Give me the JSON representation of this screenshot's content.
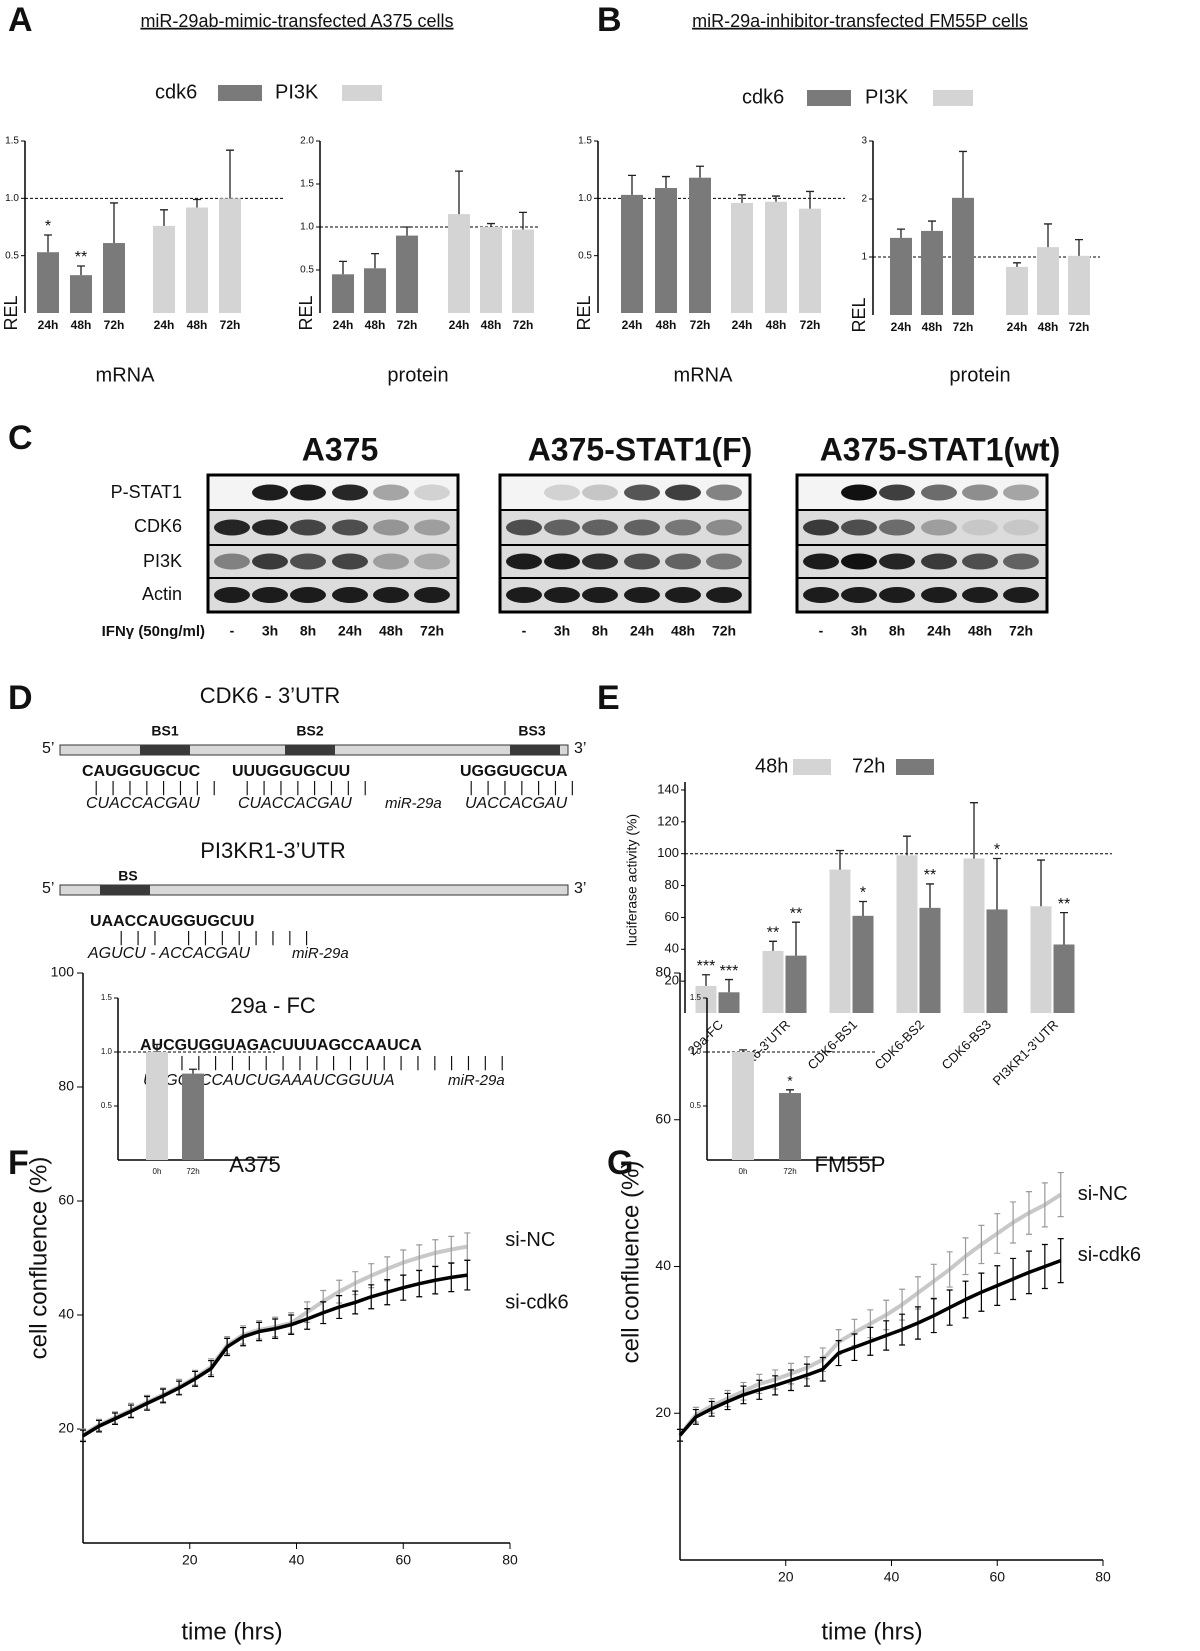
{
  "chart_data": [
    {
      "panel": "A",
      "type": "bar",
      "title": "miR-29ab-mimic-transfected A375 cells",
      "xlabel": "mRNA",
      "ylabel": "REL",
      "categories": [
        "24h",
        "48h",
        "72h"
      ],
      "series": [
        {
          "name": "cdk6",
          "color": "#7a7a7a",
          "values": [
            0.53,
            0.33,
            0.61
          ],
          "errors": [
            0.15,
            0.08,
            0.35
          ],
          "significance": [
            "*",
            "**",
            null
          ]
        },
        {
          "name": "PI3K",
          "color": "#d4d4d4",
          "values": [
            0.76,
            0.92,
            1.0
          ],
          "errors": [
            0.14,
            0.07,
            0.42
          ]
        }
      ],
      "ylim": [
        0,
        1.5
      ],
      "yticks": [
        0.5,
        {
          "value": 1,
          "label": "1.0"
        },
        1.5
      ],
      "reference_line": 1
    },
    {
      "type": "bar",
      "xlabel": "protein",
      "ylabel": "REL",
      "categories": [
        "24h",
        "48h",
        "72h"
      ],
      "series": [
        {
          "color": "#7a7a7a",
          "values": [
            0.45,
            0.52,
            0.9
          ],
          "errors": [
            0.15,
            0.17,
            0.1
          ]
        },
        {
          "color": "#d4d4d4",
          "values": [
            1.15,
            1.0,
            0.97
          ],
          "errors": [
            0.5,
            0.04,
            0.2
          ]
        }
      ],
      "ylim": [
        0,
        2
      ],
      "yticks": [
        0.5,
        {
          "value": 1,
          "label": "1.0"
        },
        1.5,
        {
          "value": 2,
          "label": "2.0"
        }
      ],
      "reference_line": 1
    },
    {
      "panel": "B",
      "type": "bar",
      "title": "miR-29a-inhibitor-transfected FM55P cells",
      "xlabel": "mRNA",
      "ylabel": "REL",
      "categories": [
        "24h",
        "48h",
        "72h"
      ],
      "series": [
        {
          "name": "cdk6",
          "color": "#7a7a7a",
          "values": [
            1.03,
            1.09,
            1.18
          ],
          "errors": [
            0.17,
            0.1,
            0.1
          ]
        },
        {
          "name": "PI3K",
          "color": "#d4d4d4",
          "values": [
            0.96,
            0.97,
            0.91
          ],
          "errors": [
            0.07,
            0.05,
            0.15
          ]
        }
      ],
      "ylim": [
        0,
        1.5
      ],
      "yticks": [
        0.5,
        {
          "value": 1,
          "label": "1.0"
        },
        1.5
      ],
      "reference_line": 1
    },
    {
      "type": "bar",
      "xlabel": "protein",
      "ylabel": "REL",
      "categories": [
        "24h",
        "48h",
        "72h"
      ],
      "series": [
        {
          "color": "#7a7a7a",
          "values": [
            1.33,
            1.45,
            2.02
          ],
          "errors": [
            0.15,
            0.17,
            0.8
          ]
        },
        {
          "color": "#d4d4d4",
          "values": [
            0.83,
            1.17,
            1.02
          ],
          "errors": [
            0.07,
            0.4,
            0.28
          ]
        }
      ],
      "ylim": [
        0,
        3
      ],
      "yticks": [
        1,
        2,
        3
      ],
      "reference_line": 1
    },
    {
      "panel": "E",
      "type": "bar",
      "ylabel": "luciferase activity (%)",
      "categories": [
        "29a-FC",
        "CDK6-3’UTR",
        "CDK6-BS1",
        "CDK6-BS2",
        "CDK6-BS3",
        "PI3KR1-3’UTR"
      ],
      "series": [
        {
          "name": "48h",
          "color": "#d4d4d4",
          "values": [
            17,
            39,
            90,
            99,
            97,
            67
          ],
          "errors": [
            7,
            6,
            12,
            12,
            35,
            29
          ],
          "significance": [
            "***",
            "**",
            null,
            null,
            null,
            null
          ]
        },
        {
          "name": "72h",
          "color": "#7a7a7a",
          "values": [
            13,
            36,
            61,
            66,
            65,
            43
          ],
          "errors": [
            8,
            21,
            9,
            15,
            32,
            20
          ],
          "significance": [
            "***",
            "**",
            "*",
            "**",
            "*",
            "**"
          ]
        }
      ],
      "ylim": [
        0,
        145
      ],
      "yticks": [
        20,
        40,
        60,
        80,
        100,
        120,
        140
      ],
      "reference_line": 100
    },
    {
      "panel": "F",
      "type": "line",
      "title": "A375",
      "xlabel": "time (hrs)",
      "ylabel": "cell confluence (%)",
      "x": [
        0,
        3,
        6,
        9,
        12,
        15,
        18,
        21,
        24,
        27,
        30,
        33,
        36,
        39,
        42,
        45,
        48,
        51,
        54,
        57,
        60,
        63,
        66,
        69,
        72
      ],
      "series": [
        {
          "name": "si-NC",
          "color": "#c8c8c8",
          "values": [
            19,
            20.7,
            22,
            23.3,
            24.7,
            26,
            27.4,
            29,
            30.9,
            34.7,
            36.5,
            37.4,
            37.9,
            38.6,
            40.5,
            42.4,
            44.1,
            45.6,
            46.9,
            48.1,
            49.2,
            50.1,
            50.9,
            51.5,
            52
          ],
          "errors": [
            1,
            1,
            1,
            1.2,
            1.2,
            1.2,
            1.3,
            1.3,
            1.4,
            1.5,
            1.6,
            1.6,
            1.7,
            1.8,
            1.8,
            1.9,
            2,
            2,
            2.1,
            2.1,
            2.2,
            2.2,
            2.3,
            2.3,
            2.4
          ]
        },
        {
          "name": "si-cdk6",
          "color": "#000000",
          "values": [
            18.8,
            20.5,
            21.8,
            23.1,
            24.5,
            25.8,
            27.2,
            28.8,
            30.6,
            34.4,
            36.2,
            37.1,
            37.6,
            38.3,
            39.3,
            40.4,
            41.4,
            42.2,
            43.2,
            44,
            44.8,
            45.5,
            46.1,
            46.6,
            47
          ],
          "errors": [
            1,
            1,
            1,
            1.1,
            1.2,
            1.2,
            1.2,
            1.3,
            1.4,
            1.5,
            1.6,
            1.6,
            1.7,
            1.7,
            1.8,
            1.9,
            2,
            2,
            2.1,
            2.2,
            2.2,
            2.3,
            2.4,
            2.5,
            2.6
          ]
        }
      ],
      "xlim": [
        0,
        80
      ],
      "ylim": [
        0,
        100
      ],
      "xticks": [
        20,
        40,
        60,
        80
      ],
      "yticks": [
        20,
        40,
        60,
        80,
        100
      ]
    },
    {
      "type": "bar",
      "categories": [
        "0h",
        "72h"
      ],
      "values": [
        1.0,
        0.8
      ],
      "errors": [
        0.07,
        0.04
      ],
      "colors": [
        "#d4d4d4",
        "#7a7a7a"
      ],
      "ylim": [
        0,
        1.5
      ],
      "yticks": [
        0.5,
        {
          "value": 1,
          "label": "1.0"
        },
        1.5
      ],
      "reference_line": 1
    },
    {
      "panel": "G",
      "type": "line",
      "title": "FM55P",
      "xlabel": "time (hrs)",
      "ylabel": "cell confluence (%)",
      "x": [
        0,
        3,
        6,
        9,
        12,
        15,
        18,
        21,
        24,
        27,
        30,
        33,
        36,
        39,
        42,
        45,
        48,
        51,
        54,
        57,
        60,
        63,
        66,
        69,
        72
      ],
      "series": [
        {
          "name": "si-NC",
          "color": "#c8c8c8",
          "values": [
            17,
            19.8,
            21,
            22,
            23,
            24,
            24.6,
            25.4,
            26.2,
            27.3,
            29.7,
            31,
            32.2,
            33.4,
            34.8,
            36.4,
            38,
            39.6,
            41.4,
            43,
            44.5,
            46,
            47.3,
            48.4,
            49.8
          ],
          "errors": [
            0.8,
            1,
            1,
            1.1,
            1.2,
            1.3,
            1.3,
            1.4,
            1.5,
            1.6,
            1.7,
            1.8,
            1.9,
            2,
            2.1,
            2.2,
            2.3,
            2.4,
            2.5,
            2.6,
            2.7,
            2.8,
            2.9,
            3,
            3
          ]
        },
        {
          "name": "si-cdk6",
          "color": "#000000",
          "values": [
            17,
            19.5,
            20.6,
            21.6,
            22.5,
            23.2,
            23.8,
            24.5,
            25.2,
            26,
            28.2,
            29,
            29.8,
            30.6,
            31.4,
            32.3,
            33.3,
            34.4,
            35.5,
            36.5,
            37.4,
            38.3,
            39.2,
            40,
            40.8
          ],
          "errors": [
            0.8,
            1,
            1,
            1.1,
            1.2,
            1.3,
            1.3,
            1.4,
            1.5,
            1.6,
            1.7,
            1.8,
            1.9,
            2,
            2.1,
            2.2,
            2.3,
            2.4,
            2.5,
            2.6,
            2.7,
            2.8,
            2.9,
            3,
            3
          ]
        }
      ],
      "xlim": [
        0,
        80
      ],
      "ylim": [
        0,
        80
      ],
      "xticks": [
        20,
        40,
        60,
        80
      ],
      "yticks": [
        20,
        40,
        60,
        80
      ]
    },
    {
      "type": "bar",
      "categories": [
        "0h",
        "72h"
      ],
      "values": [
        1.0,
        0.62
      ],
      "errors": [
        0.02,
        0.03
      ],
      "colors": [
        "#d4d4d4",
        "#7a7a7a"
      ],
      "significance": [
        null,
        "*"
      ],
      "ylim": [
        0,
        1.5
      ],
      "yticks": [
        0.5,
        {
          "value": 1,
          "label": "1.0"
        },
        1.5
      ],
      "reference_line": 1
    }
  ],
  "blot": {
    "panel": "C",
    "groups": [
      "A375",
      "A375-STAT1(F)",
      "A375-STAT1(wt)"
    ],
    "rows": [
      "P-STAT1",
      "CDK6",
      "PI3K",
      "Actin"
    ],
    "lanes": [
      "-",
      "3h",
      "8h",
      "24h",
      "48h",
      "72h"
    ],
    "treatment": "IFNγ (50ng/ml)"
  },
  "diagram": {
    "panel": "D",
    "mirna": "miR-29a",
    "utrs": [
      {
        "title": "CDK6 - 3’UTR",
        "end5": "5’",
        "end3": "3’",
        "sites": [
          "BS1",
          "BS2",
          "BS3"
        ],
        "targets": [
          "CAUGGUGCUC",
          "UUUGGUGCUU",
          "UGGGUGCUA"
        ],
        "pairings": [
          "| | | | | | | |",
          "| | | | | | | |",
          "| | | | | | |"
        ],
        "mirnas": [
          "CUACCACGAU",
          "CUACCACGAU",
          "UACCACGAU"
        ]
      },
      {
        "title": "PI3KR1-3’UTR",
        "end5": "5’",
        "end3": "3’",
        "sites": [
          "BS"
        ],
        "targets": [
          "UAACCAUGGUGCUU"
        ],
        "pairings": [
          "| | |   | | | | | | | |"
        ],
        "mirnas": [
          "AGUCU - ACCACGAU"
        ]
      }
    ],
    "control": {
      "title": "29a - FC",
      "target": "AUCGUGGUAGACUUUAGCCAAUCA",
      "pairing": "| | | | | | | | | | | | | | | | | | | | | |",
      "mirna": "UAGCACCAUCUGAAAUCGGUUA"
    }
  }
}
